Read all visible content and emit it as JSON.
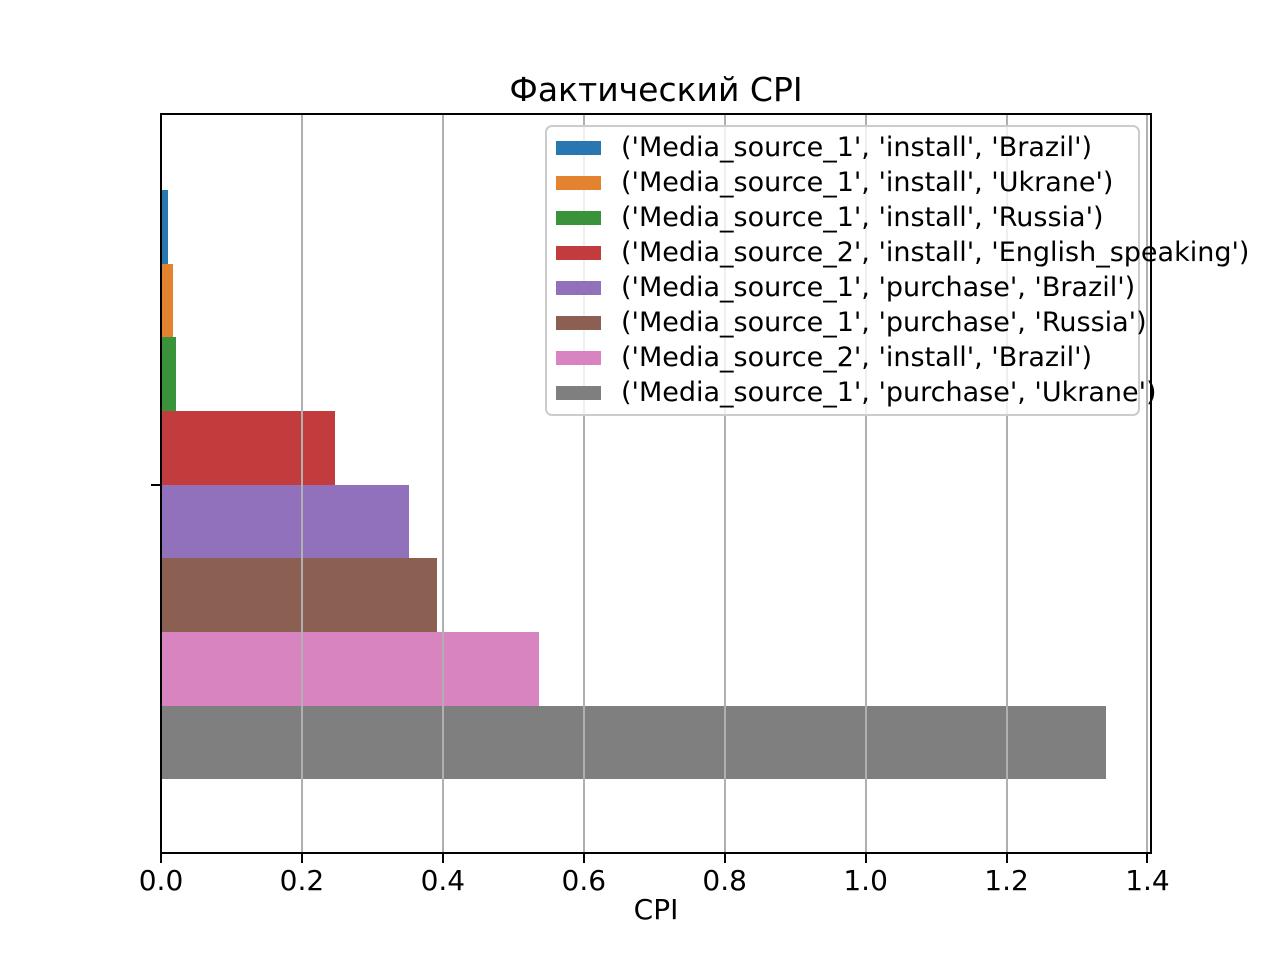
{
  "chart_data": {
    "type": "bar",
    "orientation": "horizontal",
    "title": "Фактический CPI",
    "xlabel": "CPI",
    "ylabel": "",
    "xlim": [
      0,
      1.405
    ],
    "xticks": [
      0.0,
      0.2,
      0.4,
      0.6,
      0.8,
      1.0,
      1.2,
      1.4
    ],
    "grid": "vertical gridlines at x ticks, drawn above bars",
    "legend_position": "upper right",
    "yticks": [
      "single unlabeled tick at group center"
    ],
    "series": [
      {
        "label": "('Media_source_1', 'install', 'Brazil')",
        "value": 0.008,
        "color": "#2877b1"
      },
      {
        "label": "('Media_source_1', 'install', 'Ukrane')",
        "value": 0.015,
        "color": "#e3832f"
      },
      {
        "label": "('Media_source_1', 'install', 'Russia')",
        "value": 0.02,
        "color": "#3a923a"
      },
      {
        "label": "('Media_source_2', 'install', 'English_speaking')",
        "value": 0.245,
        "color": "#c23b3d"
      },
      {
        "label": "('Media_source_1', 'purchase', 'Brazil')",
        "value": 0.35,
        "color": "#9171bb"
      },
      {
        "label": "('Media_source_1', 'purchase', 'Russia')",
        "value": 0.39,
        "color": "#8c5f53"
      },
      {
        "label": "('Media_source_2', 'install', 'Brazil')",
        "value": 0.535,
        "color": "#d884c0"
      },
      {
        "label": "('Media_source_1', 'purchase', 'Ukrane')",
        "value": 1.34,
        "color": "#7f7f7f"
      }
    ],
    "colors_note": {
      "gridline": "#b0b0b0",
      "spine": "#000000",
      "legend_border": "#cccccc"
    }
  }
}
